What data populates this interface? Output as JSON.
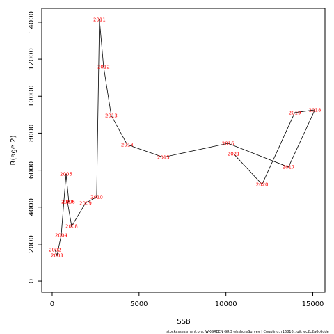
{
  "chart_data": {
    "type": "line",
    "x_label": "SSB",
    "y_label": "R(age 2)",
    "footer": "stockassessment.org, WKGREEN GRO whshoreSurvey | Coupling, r16816 , git: ec2c2a0c6dde",
    "point_labels": [
      "2002",
      "2003",
      "2004",
      "2005",
      "2006",
      "2007",
      "2008",
      "2009",
      "2010",
      "2011",
      "2012",
      "2013",
      "2014",
      "2015",
      "2016",
      "2017",
      "2018",
      "2019",
      "2020",
      "2021"
    ],
    "x": [
      160,
      280,
      520,
      800,
      960,
      880,
      1120,
      1920,
      2560,
      2720,
      2960,
      3400,
      4320,
      6400,
      10120,
      13600,
      15120,
      13960,
      12080,
      10440
    ],
    "values": [
      1690,
      1390,
      2480,
      5800,
      4290,
      4290,
      2970,
      4220,
      4550,
      14150,
      11590,
      8960,
      7380,
      6700,
      7450,
      6170,
      9260,
      9110,
      5230,
      6890
    ],
    "color": "#000000",
    "label_color": "#ff0000",
    "xlim": [
      -600,
      15700
    ],
    "ylim": [
      -600,
      14750
    ],
    "xticks": [
      0,
      5000,
      10000,
      15000
    ],
    "yticks": [
      0,
      2000,
      4000,
      6000,
      8000,
      10000,
      12000,
      14000
    ]
  }
}
